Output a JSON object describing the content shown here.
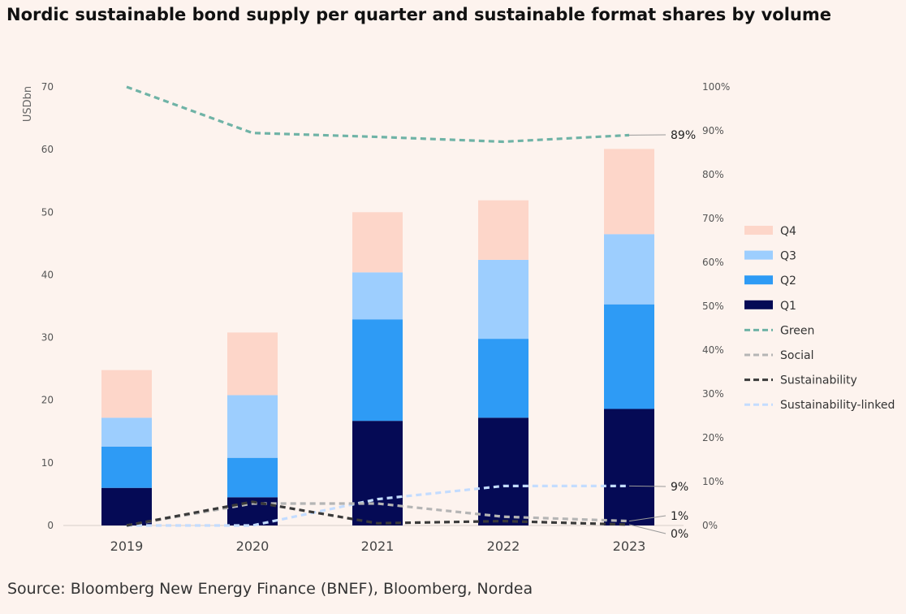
{
  "title": "Nordic sustainable bond supply per quarter and sustainable format shares by volume",
  "source": "Source: Bloomberg New Energy Finance (BNEF), Bloomberg, Nordea",
  "chart_data": {
    "type": "bar",
    "stacked": true,
    "categories": [
      "2019",
      "2020",
      "2021",
      "2022",
      "2023"
    ],
    "ylabel": "USDbn",
    "ylim": [
      0,
      70
    ],
    "yticks": [
      0,
      10,
      20,
      30,
      40,
      50,
      60,
      70
    ],
    "y2lim": [
      0,
      100
    ],
    "y2ticks": [
      "0%",
      "10%",
      "20%",
      "30%",
      "40%",
      "50%",
      "60%",
      "70%",
      "80%",
      "90%",
      "100%"
    ],
    "grid": false,
    "legend_position": "right",
    "series": [
      {
        "name": "Q1",
        "values": [
          6.0,
          4.5,
          16.7,
          17.2,
          18.6
        ],
        "color": "#050a55"
      },
      {
        "name": "Q2",
        "values": [
          6.6,
          6.3,
          16.2,
          12.6,
          16.7
        ],
        "color": "#2e9bf5"
      },
      {
        "name": "Q3",
        "values": [
          4.6,
          10.0,
          7.5,
          12.6,
          11.2
        ],
        "color": "#9dcefe"
      },
      {
        "name": "Q4",
        "values": [
          7.6,
          10.0,
          9.6,
          9.5,
          13.6
        ],
        "color": "#fdd6c9"
      }
    ],
    "line_series": [
      {
        "name": "Green",
        "values": [
          100,
          89.5,
          88.6,
          87.5,
          89
        ],
        "color": "#6fb3a6",
        "label": "89%"
      },
      {
        "name": "Social",
        "values": [
          0,
          5,
          5,
          2,
          1
        ],
        "color": "#b5b5b5",
        "label": "1%"
      },
      {
        "name": "Sustainability",
        "values": [
          0,
          5.4,
          0.5,
          1,
          0.2
        ],
        "color": "#3a3a3a",
        "label": "0%"
      },
      {
        "name": "Sustainability-linked",
        "values": [
          0,
          0,
          6,
          9,
          9
        ],
        "color": "#c3dcff",
        "label": "9%"
      }
    ]
  }
}
